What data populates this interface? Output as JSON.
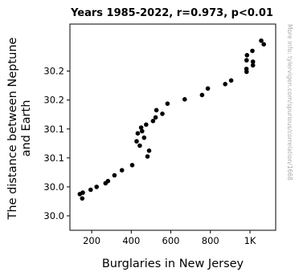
{
  "chart_data": {
    "type": "scatter",
    "title": "Years 1985-2022, r=0.973, p<0.01",
    "xlabel": "Burglaries in New Jersey",
    "ylabel_lines": [
      "The distance between Neptune",
      "and Earth"
    ],
    "xlim": [
      90,
      1130
    ],
    "x_ticks": [
      {
        "value": 200,
        "label": "200"
      },
      {
        "value": 400,
        "label": "400"
      },
      {
        "value": 600,
        "label": "600"
      },
      {
        "value": 800,
        "label": "800"
      },
      {
        "value": 1000,
        "label": "1K"
      }
    ],
    "ylim": [
      29.97,
      30.255
    ],
    "y_ticks": [
      {
        "value": 29.99,
        "label": "30.0"
      },
      {
        "value": 30.03,
        "label": "30.0"
      },
      {
        "value": 30.07,
        "label": "30.1"
      },
      {
        "value": 30.11,
        "label": "30.1"
      },
      {
        "value": 30.15,
        "label": "30.2"
      },
      {
        "value": 30.19,
        "label": "30.2"
      }
    ],
    "grid": false,
    "marker_color": "#000000",
    "points": [
      [
        1057,
        30.232
      ],
      [
        1070,
        30.227
      ],
      [
        1012,
        30.218
      ],
      [
        985,
        30.212
      ],
      [
        983,
        30.205
      ],
      [
        1015,
        30.203
      ],
      [
        1015,
        30.198
      ],
      [
        982,
        30.193
      ],
      [
        983,
        30.189
      ],
      [
        905,
        30.177
      ],
      [
        875,
        30.172
      ],
      [
        787,
        30.166
      ],
      [
        758,
        30.157
      ],
      [
        670,
        30.151
      ],
      [
        583,
        30.145
      ],
      [
        527,
        30.136
      ],
      [
        557,
        30.131
      ],
      [
        523,
        30.126
      ],
      [
        510,
        30.121
      ],
      [
        475,
        30.116
      ],
      [
        450,
        30.112
      ],
      [
        455,
        30.107
      ],
      [
        433,
        30.104
      ],
      [
        465,
        30.098
      ],
      [
        427,
        30.093
      ],
      [
        443,
        30.087
      ],
      [
        490,
        30.08
      ],
      [
        482,
        30.072
      ],
      [
        405,
        30.06
      ],
      [
        353,
        30.053
      ],
      [
        315,
        30.046
      ],
      [
        282,
        30.038
      ],
      [
        270,
        30.035
      ],
      [
        225,
        30.03
      ],
      [
        195,
        30.026
      ],
      [
        140,
        30.02
      ],
      [
        155,
        30.022
      ],
      [
        152,
        30.014
      ]
    ],
    "watermark": "More info: tylervigen.com/spurious/correlation/1668"
  }
}
